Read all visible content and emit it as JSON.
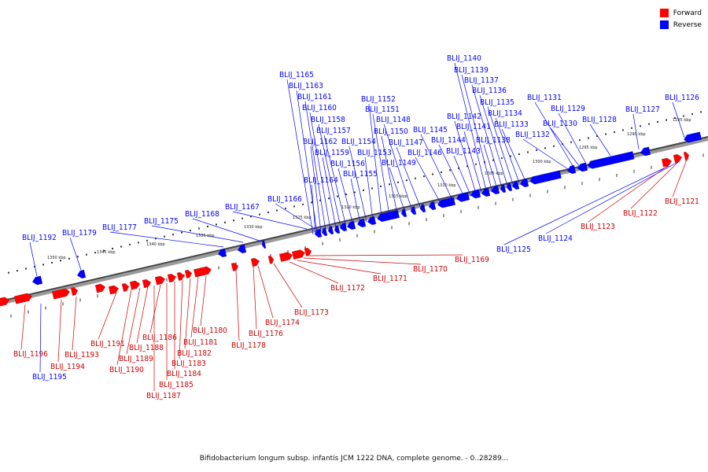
{
  "legend": {
    "forward_label": "Forward",
    "reverse_label": "Reverse",
    "forward_color": "#ff0000",
    "reverse_color": "#0000ff"
  },
  "caption": "Bifidobacterium longum subsp. infantis JCM 1222 DNA, complete genome. - 0..28289...",
  "ticks": [
    "1285 kbp",
    "1290 kbp",
    "1295 kbp",
    "1300 kbp",
    "1305 kbp",
    "1310 kbp",
    "1315 kbp",
    "1320 kbp",
    "1325 kbp",
    "1330 kbp",
    "1335 kbp",
    "1340 kbp",
    "1345 kbp",
    "1350 kbp"
  ],
  "reverse_genes": [
    "BLIJ_1126",
    "BLIJ_1127",
    "BLIJ_1128",
    "BLIJ_1129",
    "BLIJ_1130",
    "BLIJ_1131",
    "BLIJ_1132",
    "BLIJ_1133",
    "BLIJ_1134",
    "BLIJ_1135",
    "BLIJ_1136",
    "BLIJ_1137",
    "BLIJ_1138",
    "BLIJ_1139",
    "BLIJ_1140",
    "BLIJ_1141",
    "BLIJ_1142",
    "BLIJ_1143",
    "BLIJ_1144",
    "BLIJ_1145",
    "BLIJ_1146",
    "BLIJ_1147",
    "BLIJ_1148",
    "BLIJ_1149",
    "BLIJ_1150",
    "BLIJ_1151",
    "BLIJ_1152",
    "BLIJ_1153",
    "BLIJ_1154",
    "BLIJ_1155",
    "BLIJ_1156",
    "BLIJ_1157",
    "BLIJ_1158",
    "BLIJ_1159",
    "BLIJ_1160",
    "BLIJ_1161",
    "BLIJ_1162",
    "BLIJ_1163",
    "BLIJ_1164",
    "BLIJ_1165",
    "BLIJ_1166",
    "BLIJ_1167",
    "BLIJ_1168",
    "BLIJ_1175",
    "BLIJ_1177",
    "BLIJ_1179",
    "BLIJ_1192",
    "BLIJ_1125",
    "BLIJ_1124",
    "BLIJ_1195"
  ],
  "forward_genes": [
    "BLIJ_1121",
    "BLIJ_1122",
    "BLIJ_1123",
    "BLIJ_1169",
    "BLIJ_1170",
    "BLIJ_1171",
    "BLIJ_1172",
    "BLIJ_1173",
    "BLIJ_1174",
    "BLIJ_1176",
    "BLIJ_1178",
    "BLIJ_1180",
    "BLIJ_1181",
    "BLIJ_1182",
    "BLIJ_1183",
    "BLIJ_1184",
    "BLIJ_1185",
    "BLIJ_1186",
    "BLIJ_1187",
    "BLIJ_1188",
    "BLIJ_1189",
    "BLIJ_1190",
    "BLIJ_1191",
    "BLIJ_1193",
    "BLIJ_1194",
    "BLIJ_1196"
  ]
}
